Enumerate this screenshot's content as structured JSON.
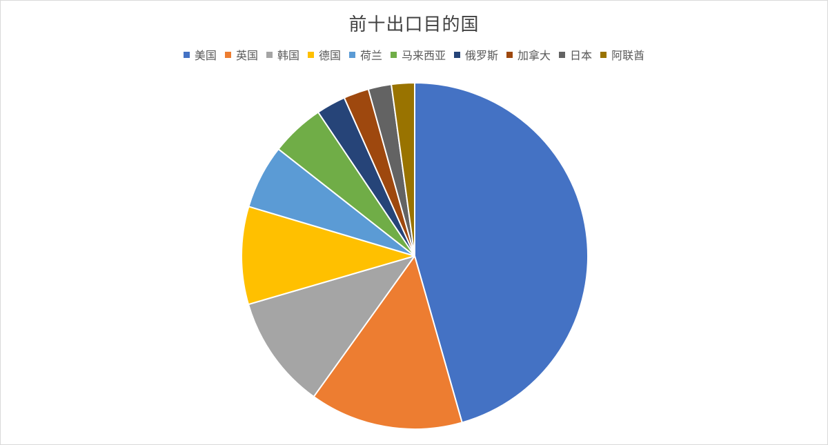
{
  "chart_data": {
    "type": "pie",
    "title": "前十出口目的国",
    "legend_position": "top",
    "start_angle_deg": 0,
    "direction": "clockwise",
    "categories": [
      "美国",
      "英国",
      "韩国",
      "德国",
      "荷兰",
      "马来西亚",
      "俄罗斯",
      "加拿大",
      "日本",
      "阿联酋"
    ],
    "values": [
      46.5,
      14.6,
      10.8,
      9.3,
      6.1,
      5.1,
      2.8,
      2.4,
      2.2,
      2.2
    ],
    "colors": [
      "#4472C4",
      "#ED7D31",
      "#A5A5A5",
      "#FFC000",
      "#5B9BD5",
      "#70AD47",
      "#264478",
      "#9E480E",
      "#636363",
      "#997300"
    ]
  }
}
